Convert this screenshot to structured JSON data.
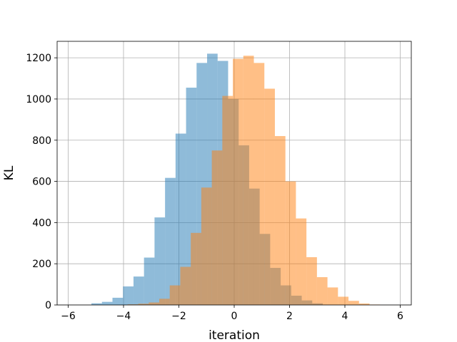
{
  "chart_data": {
    "type": "bar",
    "title": "",
    "xlabel": "iteration",
    "ylabel": "KL",
    "xlim": [
      -6.4,
      6.4
    ],
    "ylim": [
      0,
      1280
    ],
    "xticks": [
      -6,
      -4,
      -2,
      0,
      2,
      4,
      6
    ],
    "yticks": [
      0,
      200,
      400,
      600,
      800,
      1000,
      1200
    ],
    "grid": true,
    "legend": "none",
    "series": [
      {
        "color": "#1f77b4",
        "opacity": 0.5,
        "bins": [
          [
            -5.16,
            -4.78,
            8
          ],
          [
            -4.78,
            -4.4,
            15
          ],
          [
            -4.4,
            -4.02,
            35
          ],
          [
            -4.02,
            -3.64,
            90
          ],
          [
            -3.64,
            -3.26,
            138
          ],
          [
            -3.26,
            -2.88,
            230
          ],
          [
            -2.88,
            -2.5,
            425
          ],
          [
            -2.5,
            -2.12,
            617
          ],
          [
            -2.12,
            -1.74,
            832
          ],
          [
            -1.74,
            -1.36,
            1055
          ],
          [
            -1.36,
            -0.98,
            1175
          ],
          [
            -0.98,
            -0.6,
            1220
          ],
          [
            -0.6,
            -0.22,
            1185
          ],
          [
            -0.22,
            0.16,
            1000
          ],
          [
            0.16,
            0.54,
            775
          ],
          [
            0.54,
            0.92,
            565
          ],
          [
            0.92,
            1.3,
            345
          ],
          [
            1.3,
            1.68,
            180
          ],
          [
            1.68,
            2.06,
            95
          ],
          [
            2.06,
            2.44,
            45
          ],
          [
            2.44,
            2.82,
            22
          ],
          [
            2.82,
            3.2,
            8
          ]
        ]
      },
      {
        "color": "#ff7f0e",
        "opacity": 0.5,
        "bins": [
          [
            -3.85,
            -3.47,
            3
          ],
          [
            -3.47,
            -3.09,
            6
          ],
          [
            -3.09,
            -2.71,
            12
          ],
          [
            -2.71,
            -2.33,
            30
          ],
          [
            -2.33,
            -1.95,
            95
          ],
          [
            -1.95,
            -1.57,
            185
          ],
          [
            -1.57,
            -1.19,
            350
          ],
          [
            -1.19,
            -0.81,
            570
          ],
          [
            -0.81,
            -0.43,
            750
          ],
          [
            -0.43,
            -0.05,
            1015
          ],
          [
            -0.05,
            0.33,
            1195
          ],
          [
            0.33,
            0.71,
            1210
          ],
          [
            0.71,
            1.09,
            1175
          ],
          [
            1.09,
            1.47,
            1050
          ],
          [
            1.47,
            1.85,
            820
          ],
          [
            1.85,
            2.23,
            600
          ],
          [
            2.23,
            2.61,
            420
          ],
          [
            2.61,
            2.99,
            232
          ],
          [
            2.99,
            3.37,
            135
          ],
          [
            3.37,
            3.75,
            85
          ],
          [
            3.75,
            4.13,
            40
          ],
          [
            4.13,
            4.51,
            20
          ],
          [
            4.51,
            4.89,
            7
          ],
          [
            4.89,
            5.27,
            2
          ]
        ]
      }
    ]
  }
}
